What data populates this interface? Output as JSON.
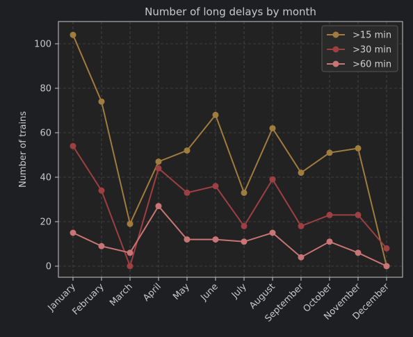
{
  "chart_data": {
    "type": "line",
    "title": "Number of long delays by month",
    "ylabel": "Number of trains",
    "xlabel": "",
    "categories": [
      "January",
      "February",
      "March",
      "April",
      "May",
      "June",
      "July",
      "August",
      "September",
      "October",
      "November",
      "December"
    ],
    "ylim": [
      -5,
      110
    ],
    "yticks": [
      0,
      20,
      40,
      60,
      80,
      100
    ],
    "grid": true,
    "legend_position": "top-right",
    "series": [
      {
        "name": ">15 min",
        "color": "#a07c3f",
        "values": [
          104,
          74,
          19,
          47,
          52,
          68,
          33,
          62,
          42,
          51,
          53,
          0
        ]
      },
      {
        "name": ">30 min",
        "color": "#9e3f43",
        "values": [
          54,
          34,
          0,
          44,
          33,
          36,
          18,
          39,
          18,
          23,
          23,
          8
        ]
      },
      {
        "name": ">60 min",
        "color": "#c97575",
        "values": [
          15,
          9,
          6,
          27,
          12,
          12,
          11,
          15,
          4,
          11,
          6,
          0
        ]
      }
    ]
  },
  "colors": {
    "background": "#1e1f22",
    "plot_background": "#222222",
    "text": "#c8c8c8",
    "grid": "#4a4a4a"
  }
}
